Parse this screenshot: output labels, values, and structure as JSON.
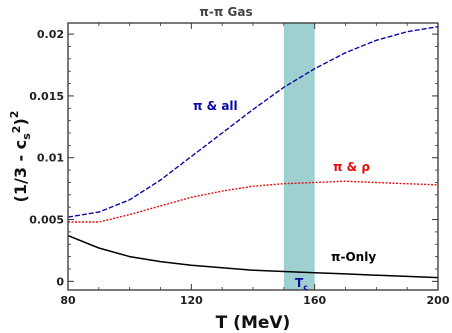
{
  "chart_data": {
    "type": "line",
    "title": "π-π Gas",
    "xlabel": "T (MeV)",
    "ylabel": "(1/3 - cs2)2",
    "ylabel_parts": {
      "open": "(1/3 - c",
      "sub": "s",
      "mid": "2",
      "close": ")",
      "outer": "2"
    },
    "xlim": [
      80,
      200
    ],
    "ylim": [
      -0.0007,
      0.0209
    ],
    "xticks": [
      80,
      120,
      160,
      200
    ],
    "yticks": [
      0,
      0.005,
      0.01,
      0.015,
      0.02
    ],
    "ytick_labels": [
      "0",
      "0.005",
      "0.01",
      "0.015",
      "0.02"
    ],
    "grid": false,
    "x": [
      80,
      90,
      100,
      110,
      120,
      130,
      140,
      150,
      160,
      170,
      180,
      190,
      200
    ],
    "series": [
      {
        "name": "π & all",
        "color": "#0a0aa0",
        "style": "dashed",
        "values": [
          0.0052,
          0.0056,
          0.0066,
          0.0082,
          0.0101,
          0.012,
          0.0139,
          0.0157,
          0.0172,
          0.0185,
          0.0195,
          0.0202,
          0.0206
        ]
      },
      {
        "name": "π & ρ",
        "color": "#e01010",
        "style": "dotted",
        "values": [
          0.0048,
          0.0048,
          0.0054,
          0.0061,
          0.0068,
          0.0073,
          0.0077,
          0.0079,
          0.008,
          0.0081,
          0.008,
          0.0079,
          0.0078
        ]
      },
      {
        "name": "π-Only",
        "color": "#000000",
        "style": "solid",
        "values": [
          0.0037,
          0.0027,
          0.002,
          0.0016,
          0.0013,
          0.0011,
          0.0009,
          0.0008,
          0.0007,
          0.0006,
          0.0005,
          0.0004,
          0.0003
        ]
      }
    ],
    "band": {
      "x_range": [
        150,
        160
      ],
      "color": "#9fd0d0",
      "label": "T",
      "label_sub": "c",
      "label_color": "#0a0aa0"
    }
  }
}
